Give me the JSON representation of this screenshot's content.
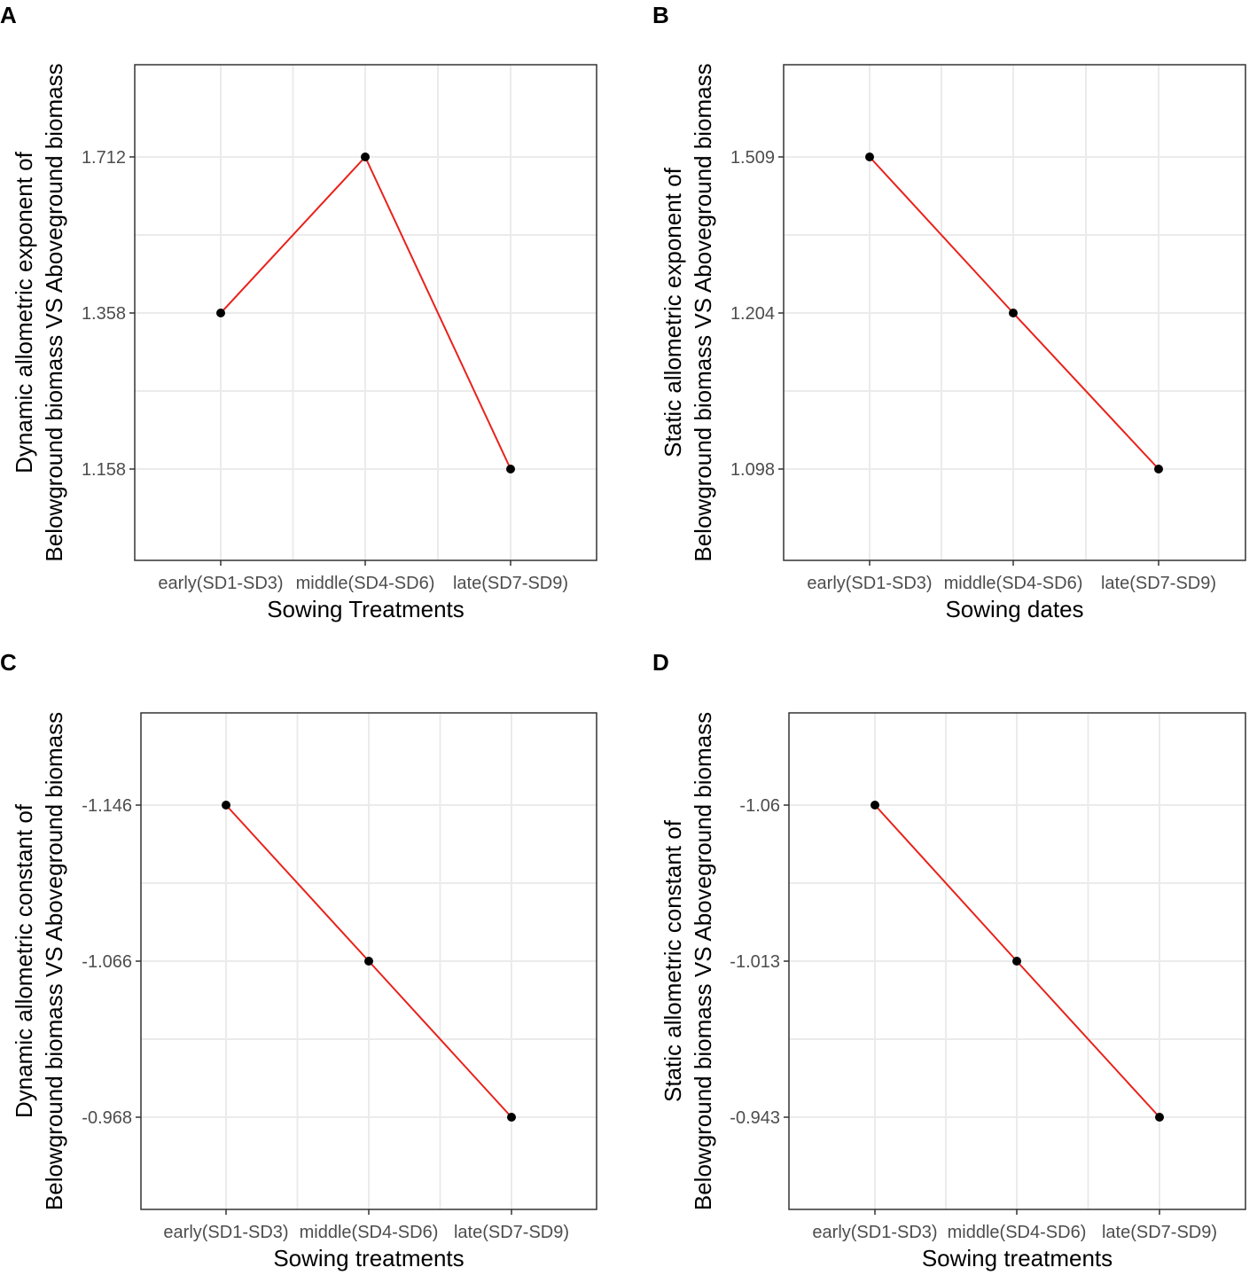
{
  "figure": {
    "panel_count": 4
  },
  "colors": {
    "line": "#e8221b",
    "point": "#000000",
    "grid": "#ebebeb",
    "border": "#333333"
  },
  "chart_data": [
    {
      "panel": "A",
      "type": "line",
      "categories": [
        "early(SD1-SD3)",
        "middle(SD4-SD6)",
        "late(SD7-SD9)"
      ],
      "values": [
        1.358,
        1.712,
        1.158
      ],
      "yticks": [
        "1.712",
        "1.358",
        "1.158"
      ],
      "xlabel": "Sowing Treatments",
      "ylabel": [
        "Dynamic allometric exponent of",
        "Belowground biomass VS Aboveground biomass"
      ]
    },
    {
      "panel": "B",
      "type": "line",
      "categories": [
        "early(SD1-SD3)",
        "middle(SD4-SD6)",
        "late(SD7-SD9)"
      ],
      "values": [
        1.509,
        1.204,
        1.098
      ],
      "yticks": [
        "1.509",
        "1.204",
        "1.098"
      ],
      "xlabel": "Sowing dates",
      "ylabel": [
        "Static allometric exponent of",
        "Belowground biomass VS Aboveground biomass"
      ]
    },
    {
      "panel": "C",
      "type": "line",
      "categories": [
        "early(SD1-SD3)",
        "middle(SD4-SD6)",
        "late(SD7-SD9)"
      ],
      "values": [
        -1.146,
        -1.066,
        -0.968
      ],
      "yticks": [
        "-1.146",
        "-1.066",
        "-0.968"
      ],
      "xlabel": "Sowing treatments",
      "ylabel": [
        "Dynamic allometric constant of",
        "Belowground biomass VS Aboveground biomass"
      ]
    },
    {
      "panel": "D",
      "type": "line",
      "categories": [
        "early(SD1-SD3)",
        "middle(SD4-SD6)",
        "late(SD7-SD9)"
      ],
      "values": [
        -1.06,
        -1.013,
        -0.943
      ],
      "yticks": [
        "-1.06",
        "-1.013",
        "-0.943"
      ],
      "xlabel": "Sowing treatments",
      "ylabel": [
        "Static allometric constant of",
        "Belowground biomass VS Aboveground biomass"
      ]
    }
  ]
}
